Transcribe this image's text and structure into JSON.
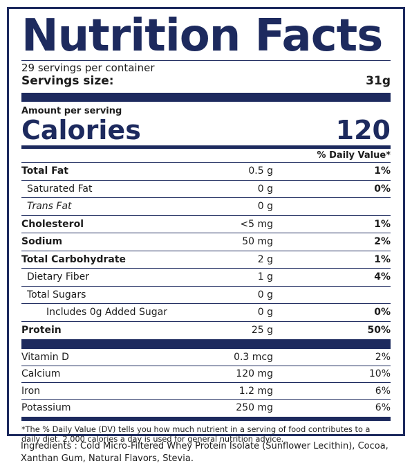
{
  "title": "Nutrition Facts",
  "servings_per_container": "29 servings per container",
  "serving_size_label": "Servings size:",
  "serving_size_value": "31g",
  "amount_per_serving": "Amount per serving",
  "calories_label": "Calories",
  "calories_value": "120",
  "daily_value_header": "% Daily Value*",
  "nutrients": [
    {
      "name": "Total Fat",
      "amount": "0.5 g",
      "dv": "1%"
    },
    {
      "name": "Saturated Fat",
      "amount": "0 g",
      "dv": "0%"
    },
    {
      "name": "Trans Fat",
      "amount": "0 g",
      "dv": ""
    },
    {
      "name": "Cholesterol",
      "amount": "<5 mg",
      "dv": "1%"
    },
    {
      "name": "Sodium",
      "amount": "50 mg",
      "dv": "2%"
    },
    {
      "name": "Total Carbohydrate",
      "amount": "2 g",
      "dv": "1%"
    },
    {
      "name": "Dietary Fiber",
      "amount": "1 g",
      "dv": "4%"
    },
    {
      "name": "Total Sugars",
      "amount": "0 g",
      "dv": ""
    },
    {
      "name": "Includes 0g Added Sugar",
      "amount": "0 g",
      "dv": "0%"
    },
    {
      "name": "Protein",
      "amount": "25 g",
      "dv": "50%"
    }
  ],
  "vitamins": [
    {
      "name": "Vitamin D",
      "amount": "0.3 mcg",
      "dv": "2%"
    },
    {
      "name": "Calcium",
      "amount": "120 mg",
      "dv": "10%"
    },
    {
      "name": "Iron",
      "amount": "1.2 mg",
      "dv": "6%"
    },
    {
      "name": "Potassium",
      "amount": "250 mg",
      "dv": "6%"
    }
  ],
  "footnote": "*The % Daily Value (DV) tells you how much nutrient in a serving of food contributes to a daily diet. 2,000 calories a day is used for general nutrition advice.",
  "ingredients": "Ingredients :  Cold Micro-Filtered Whey Protein Isolate (Sunflower Lecithin), Cocoa, Xanthan Gum, Natural Flavors, Stevia.",
  "colors": {
    "label_navy": "#1d2a5e",
    "text": "#1c1c1c"
  }
}
